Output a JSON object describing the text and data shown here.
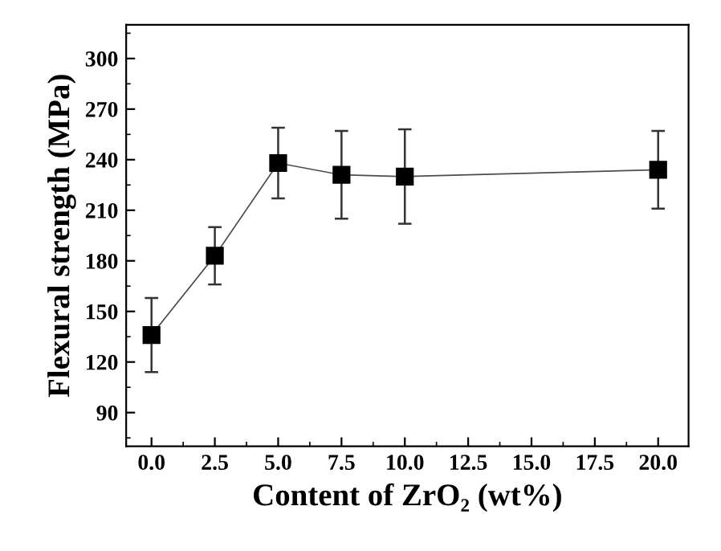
{
  "chart_data": {
    "type": "line",
    "xlabel": "Content of ZrO₂ (wt%)",
    "ylabel": "Flexural strength (MPa)",
    "x": [
      0,
      2.5,
      5,
      7.5,
      10,
      20
    ],
    "series": [
      {
        "color": "#000000",
        "values": [
          136,
          183,
          238,
          231,
          230,
          234
        ],
        "errors": [
          [
            114,
            158
          ],
          [
            166,
            200
          ],
          [
            217,
            259
          ],
          [
            205,
            257
          ],
          [
            202,
            258
          ],
          [
            211,
            257
          ]
        ]
      }
    ],
    "marker": "square",
    "line_style": "solid",
    "grid": false,
    "legend": false,
    "xlim": [
      -1,
      21.2
    ],
    "xticks": [
      {
        "value": 0,
        "label": "0.0"
      },
      {
        "value": 2.5,
        "label": "2.5"
      },
      {
        "value": 5,
        "label": "5.0"
      },
      {
        "value": 7.5,
        "label": "7.5"
      },
      {
        "value": 10,
        "label": "10.0"
      },
      {
        "value": 12.5,
        "label": "12.5"
      },
      {
        "value": 15,
        "label": "15.0"
      },
      {
        "value": 17.5,
        "label": "17.5"
      },
      {
        "value": 20,
        "label": "20.0"
      }
    ],
    "ylim": [
      70,
      320
    ],
    "yticks": [
      90,
      120,
      150,
      180,
      210,
      240,
      270,
      300
    ]
  }
}
